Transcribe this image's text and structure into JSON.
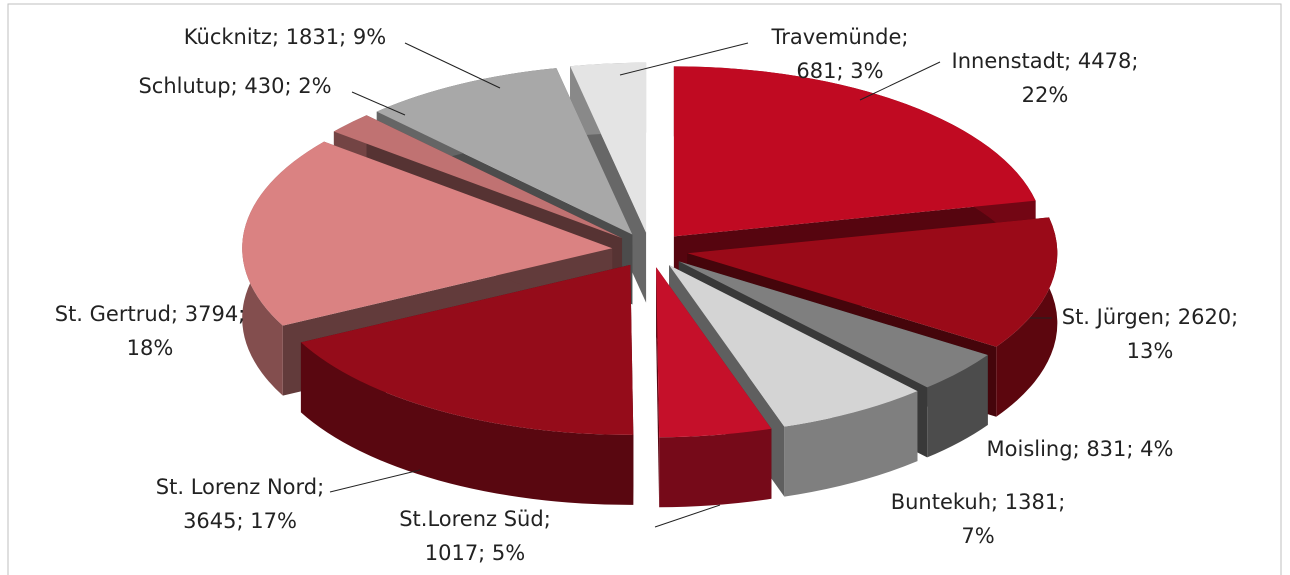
{
  "chart_data": {
    "type": "pie3d",
    "values": [
      4478,
      2620,
      831,
      1381,
      1017,
      3645,
      3794,
      430,
      1831,
      681
    ],
    "value_labels": [
      [
        "Innenstadt; 4478;",
        "22%"
      ],
      [
        "St. Jürgen; 2620;",
        "13%"
      ],
      [
        "Moisling; 831; 4%"
      ],
      [
        "Buntekuh; 1381;",
        "7%"
      ],
      [
        "St.Lorenz Süd;",
        "1017; 5%"
      ],
      [
        "St. Lorenz Nord;",
        "3645; 17%"
      ],
      [
        "St. Gertrud; 3794;",
        "18%"
      ],
      [
        "Schlutup; 430; 2%"
      ],
      [
        "Kücknitz; 1831; 9%"
      ],
      [
        "Travemünde;",
        "681; 3%"
      ]
    ],
    "colors": [
      "#c00a22",
      "#9a0a18",
      "#7f7f7f",
      "#d4d4d4",
      "#c5102a",
      "#950c1a",
      "#da8282",
      "#c07272",
      "#a8a8a8",
      "#e4e4e4"
    ]
  }
}
